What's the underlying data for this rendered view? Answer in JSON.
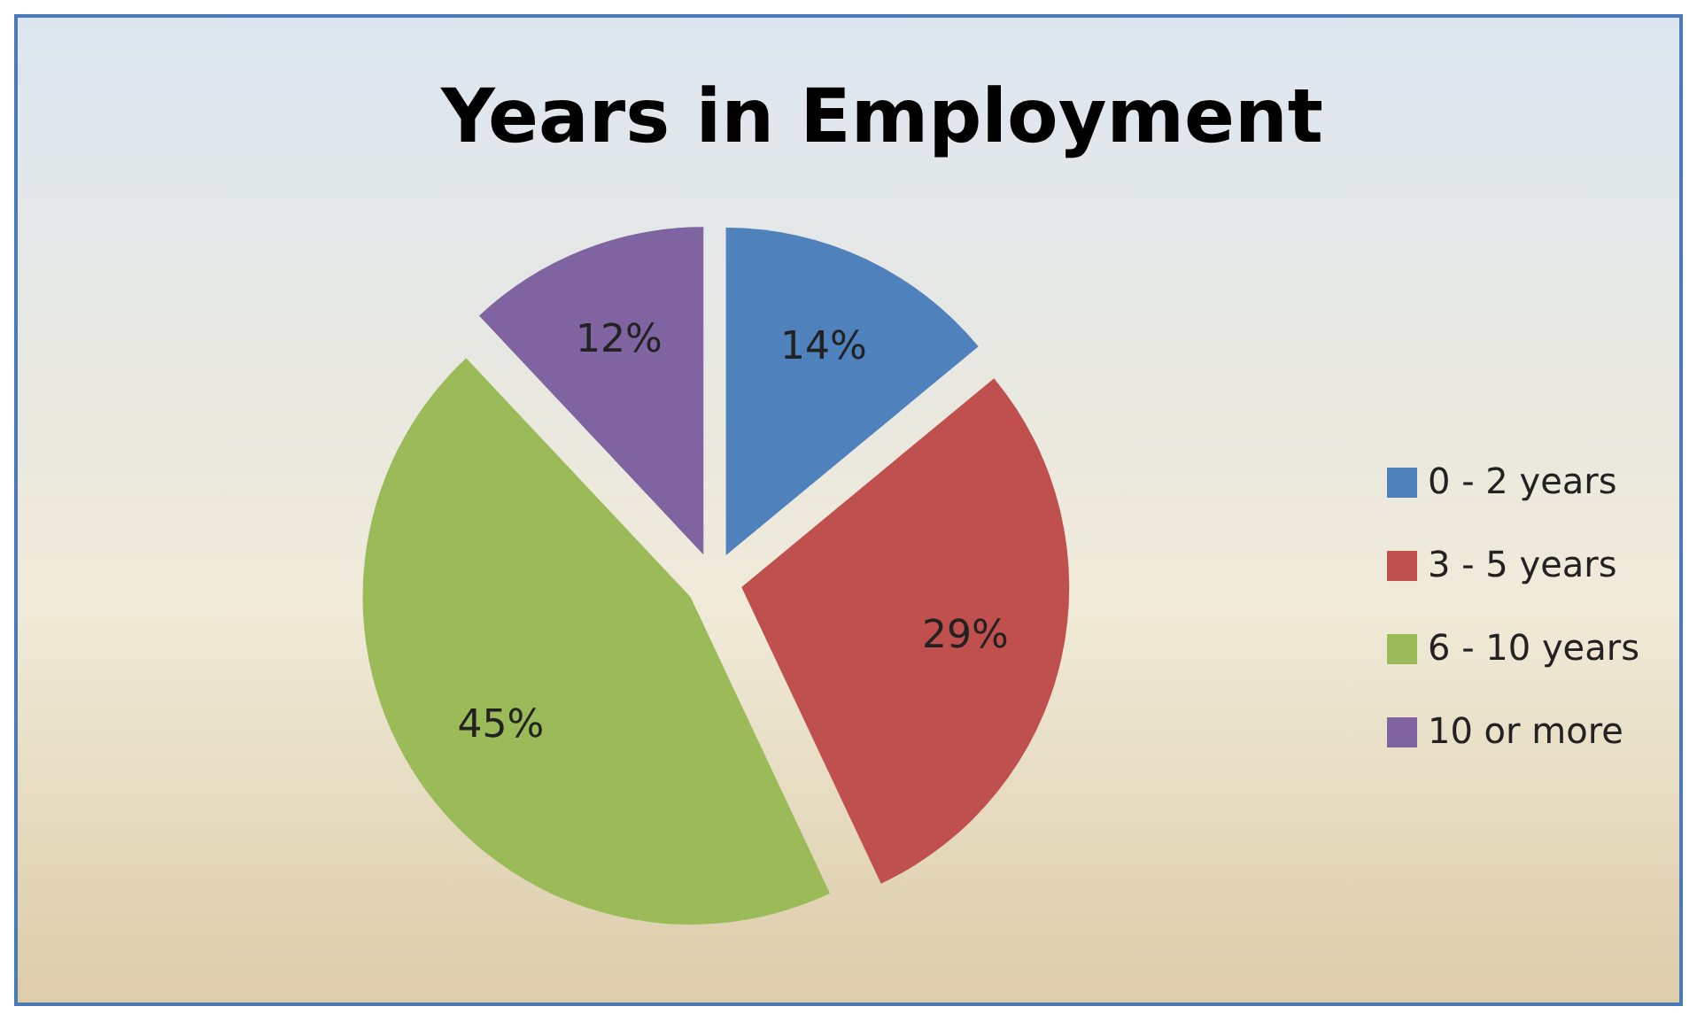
{
  "chart_data": {
    "type": "pie",
    "title": "Years in Employment",
    "categories": [
      "0 - 2 years",
      "3 - 5 years",
      "6 - 10 years",
      "10 or more"
    ],
    "values": [
      14,
      29,
      45,
      12
    ],
    "colors": [
      "#4f81bd",
      "#c0504d",
      "#9bbb59",
      "#8064a2"
    ],
    "value_labels": [
      "14%",
      "29%",
      "45%",
      "12%"
    ],
    "legend": "right"
  }
}
